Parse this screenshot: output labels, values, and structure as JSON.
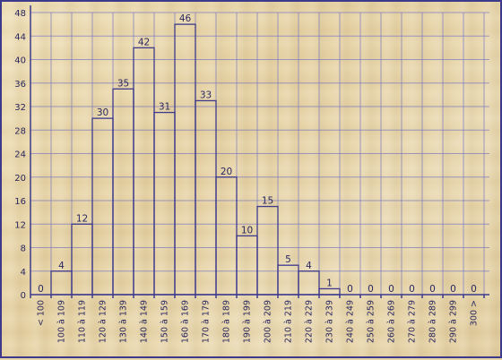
{
  "chart_data": {
    "type": "bar",
    "categories": [
      "< 100",
      "100 à 109",
      "110 à 119",
      "120 à 129",
      "130 à 139",
      "140 à 149",
      "150 à 159",
      "160 à 169",
      "170 à 179",
      "180 à 189",
      "190 à 199",
      "200 à 209",
      "210 à 219",
      "220 à 229",
      "230 à 239",
      "240 à 249",
      "250 à 259",
      "260 à 269",
      "270 à 279",
      "280 à 289",
      "290 à 299",
      "300 >"
    ],
    "values": [
      0,
      4,
      12,
      30,
      35,
      42,
      31,
      46,
      33,
      20,
      10,
      15,
      5,
      4,
      1,
      0,
      0,
      0,
      0,
      0,
      0,
      0
    ],
    "ylim": [
      0,
      48
    ],
    "yticks": [
      0,
      4,
      8,
      12,
      16,
      20,
      24,
      28,
      32,
      36,
      40,
      44,
      48
    ],
    "grid": true,
    "colors": {
      "bars": "#3d3a8c",
      "grid": "#7a78c0"
    }
  }
}
